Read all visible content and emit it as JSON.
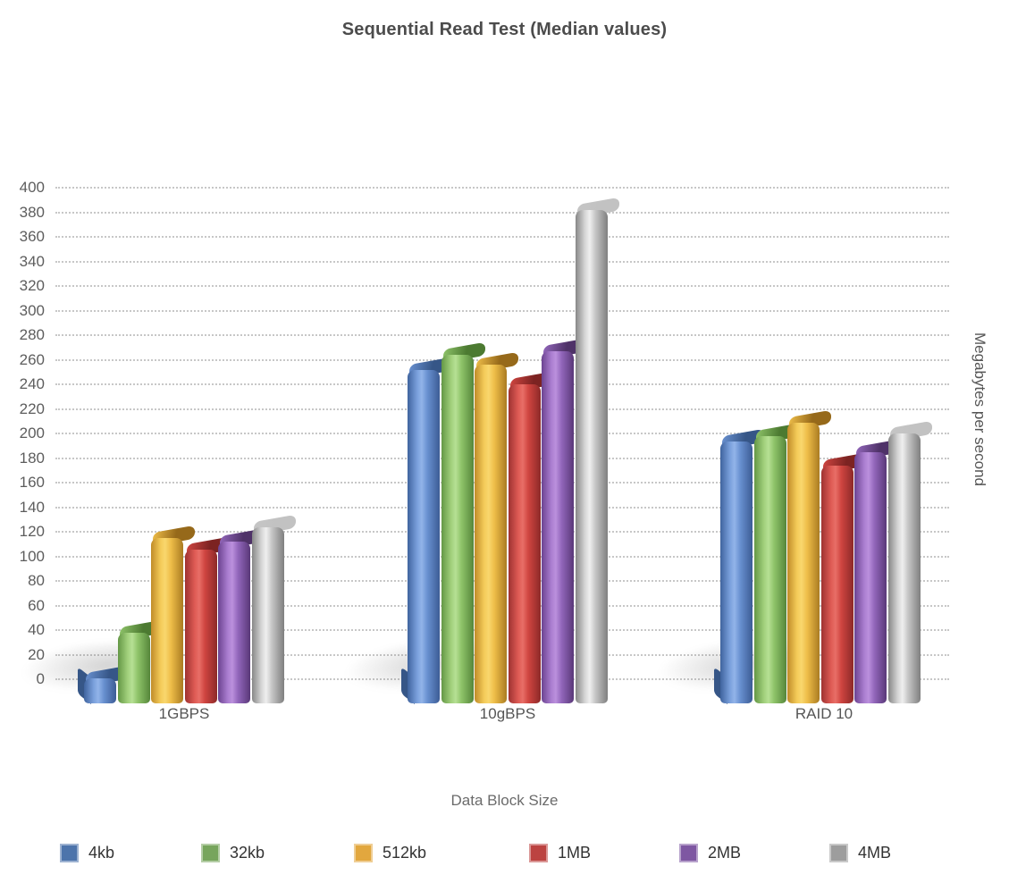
{
  "chart_data": {
    "type": "bar",
    "style": "3d-cylindrical-grouped-bars",
    "title": "Sequential Read Test (Median values)",
    "xlabel": "Data Block Size",
    "ylabel": "Megabytes per second",
    "categories": [
      "1GBPS",
      "10gBPS",
      "RAID 10"
    ],
    "series": [
      {
        "name": "4kb",
        "color": "#4d74ab",
        "lid": "#365687",
        "shades": [
          "#3f639e",
          "#7aa0dc",
          "#92b4e9",
          "#6890d0",
          "#3c5c95"
        ],
        "values": [
          8,
          259,
          201
        ]
      },
      {
        "name": "32kb",
        "color": "#77a55c",
        "lid": "#4c7a31",
        "shades": [
          "#649745",
          "#a1d07c",
          "#b6e094",
          "#8ec369",
          "#55863a"
        ],
        "values": [
          45,
          271,
          205
        ]
      },
      {
        "name": "512kb",
        "color": "#e2a73e",
        "lid": "#96691a",
        "shades": [
          "#c08c29",
          "#f4cb59",
          "#f9d76d",
          "#eebd48",
          "#aa7b22"
        ],
        "values": [
          122,
          263,
          216
        ]
      },
      {
        "name": "1MB",
        "color": "#bc4341",
        "lid": "#7c2322",
        "shades": [
          "#9e3231",
          "#de5a54",
          "#e86e67",
          "#cf4540",
          "#8c2928"
        ],
        "values": [
          113,
          247,
          181
        ]
      },
      {
        "name": "2MB",
        "color": "#7e57a2",
        "lid": "#4f3268",
        "shades": [
          "#6b4390",
          "#aa7dd0",
          "#bb90dd",
          "#9266bb",
          "#593878"
        ],
        "values": [
          119,
          274,
          192
        ]
      },
      {
        "name": "4MB",
        "color": "#9d9d9d",
        "lid": "#c2c2c2",
        "shades": [
          "#878787",
          "#d7d7d7",
          "#efefef",
          "#c5c5c5",
          "#7f7f7f"
        ],
        "values": [
          131,
          389,
          207
        ]
      }
    ],
    "ylim": [
      0,
      400
    ],
    "ytick_step": 20,
    "yticks": [
      400,
      380,
      360,
      340,
      320,
      300,
      280,
      260,
      240,
      220,
      200,
      180,
      160,
      140,
      120,
      100,
      80,
      60,
      40,
      20,
      0
    ],
    "grid": "horizontal dotted lines on, no axis lines",
    "legend_position": "bottom"
  },
  "colors": {
    "background": "#ffffff",
    "grid": "#c7c7c7",
    "title_text": "#4c4c4c",
    "tick_text": "#5d5d5d",
    "axis_title_text": "#6b6b6b",
    "legend_text": "#333333"
  }
}
